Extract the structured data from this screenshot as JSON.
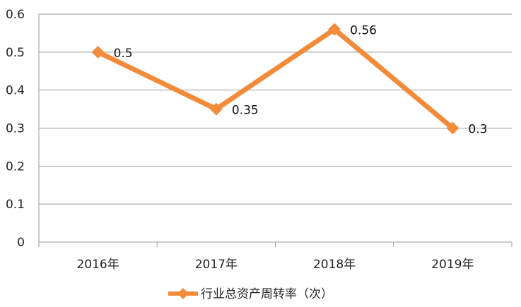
{
  "chart_data": {
    "type": "line",
    "categories": [
      "2016年",
      "2017年",
      "2018年",
      "2019年"
    ],
    "series": [
      {
        "name": "行业总资产周转率（次）",
        "values": [
          0.5,
          0.35,
          0.56,
          0.3
        ],
        "labels": [
          "0.5",
          "0.35",
          "0.56",
          "0.3"
        ],
        "color": "#F28C3A"
      }
    ],
    "ylim": [
      0,
      0.6
    ],
    "yticks": [
      "0",
      "0.1",
      "0.2",
      "0.3",
      "0.4",
      "0.5",
      "0.6"
    ],
    "grid": true,
    "legend_position": "bottom",
    "marker": "diamond"
  }
}
